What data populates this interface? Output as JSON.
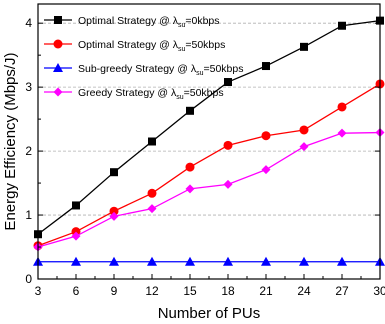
{
  "chart_data": {
    "type": "line",
    "xlabel": "Number of PUs",
    "ylabel": "Energy Efficiency (Mbps/J)",
    "x": [
      3,
      6,
      9,
      12,
      15,
      18,
      21,
      24,
      27,
      30
    ],
    "xticks": [
      3,
      6,
      9,
      12,
      15,
      18,
      21,
      24,
      27,
      30
    ],
    "xlim": [
      3,
      30
    ],
    "yticks": [
      0,
      1,
      2,
      3,
      4
    ],
    "ylim": [
      0,
      4.3
    ],
    "grid": "y-dashed",
    "legend_position": "top-left",
    "series": [
      {
        "name": "Optimal Strategy @ λsu=0kbps",
        "legend_prefix": "Optimal Strategy @  ",
        "legend_lambda": "λ",
        "legend_sub": "su",
        "legend_suffix": "=0kbps",
        "color": "#000000",
        "marker": "square",
        "values": [
          0.7,
          1.15,
          1.67,
          2.15,
          2.63,
          3.08,
          3.33,
          3.63,
          3.96,
          4.04
        ]
      },
      {
        "name": "Optimal Strategy @ λsu=50kbps",
        "legend_prefix": "Optimal Strategy @  ",
        "legend_lambda": "λ",
        "legend_sub": "su",
        "legend_suffix": "=50kbps",
        "color": "#ff0000",
        "marker": "circle",
        "values": [
          0.52,
          0.74,
          1.06,
          1.34,
          1.75,
          2.09,
          2.24,
          2.33,
          2.69,
          3.05
        ]
      },
      {
        "name": "Sub-greedy Strategy @ λsu=50kbps",
        "legend_prefix": "Sub-greedy Strategy @  ",
        "legend_lambda": "λ",
        "legend_sub": "su",
        "legend_suffix": "=50kbps",
        "color": "#0000ff",
        "marker": "triangle",
        "values": [
          0.27,
          0.27,
          0.27,
          0.27,
          0.27,
          0.27,
          0.27,
          0.27,
          0.27,
          0.27
        ]
      },
      {
        "name": "Greedy Strategy @ λsu=50kbps",
        "legend_prefix": "Greedy Strategy @  ",
        "legend_lambda": "λ",
        "legend_sub": "su",
        "legend_suffix": "=50kbps",
        "color": "#ff00ff",
        "marker": "diamond",
        "values": [
          0.5,
          0.67,
          0.98,
          1.1,
          1.41,
          1.48,
          1.71,
          2.07,
          2.28,
          2.29
        ]
      }
    ]
  }
}
